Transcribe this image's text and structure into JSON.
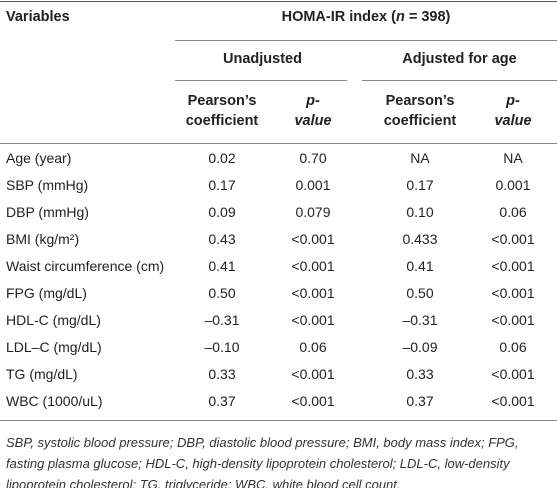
{
  "header": {
    "variables": "Variables",
    "index_title": [
      "HOMA-IR index (",
      "n",
      " = 398)"
    ],
    "groups": [
      "Unadjusted",
      "Adjusted for age"
    ],
    "subheaders": [
      "Pearson’s coefficient",
      "p-value",
      "Pearson’s coefficient",
      "p-value"
    ]
  },
  "table": {
    "rows": [
      [
        "Age (year)",
        "0.02",
        "0.70",
        "NA",
        "NA"
      ],
      [
        "SBP (mmHg)",
        "0.17",
        "0.001",
        "0.17",
        "0.001"
      ],
      [
        "DBP (mmHg)",
        "0.09",
        "0.079",
        "0.10",
        "0.06"
      ],
      [
        "BMI (kg/m²)",
        "0.43",
        "<0.001",
        "0.433",
        "<0.001"
      ],
      [
        "Waist circumference (cm)",
        "0.41",
        "<0.001",
        "0.41",
        "<0.001"
      ],
      [
        "FPG (mg/dL)",
        "0.50",
        "<0.001",
        "0.50",
        "<0.001"
      ],
      [
        "HDL-C (mg/dL)",
        "–0.31",
        "<0.001",
        "–0.31",
        "<0.001"
      ],
      [
        "LDL–C (mg/dL)",
        "–0.10",
        "0.06",
        "–0.09",
        "0.06"
      ],
      [
        "TG (mg/dL)",
        "0.33",
        "<0.001",
        "0.33",
        "<0.001"
      ],
      [
        "WBC (1000/uL)",
        "0.37",
        "<0.001",
        "0.37",
        "<0.001"
      ]
    ]
  },
  "footnote": "SBP, systolic blood pressure; DBP, diastolic blood pressure; BMI, body mass index; FPG, fasting plasma glucose; HDL-C, high-density lipoprotein cholesterol; LDL-C, low-density lipoprotein cholesterol; TG, triglyceride; WBC, white blood cell count."
}
